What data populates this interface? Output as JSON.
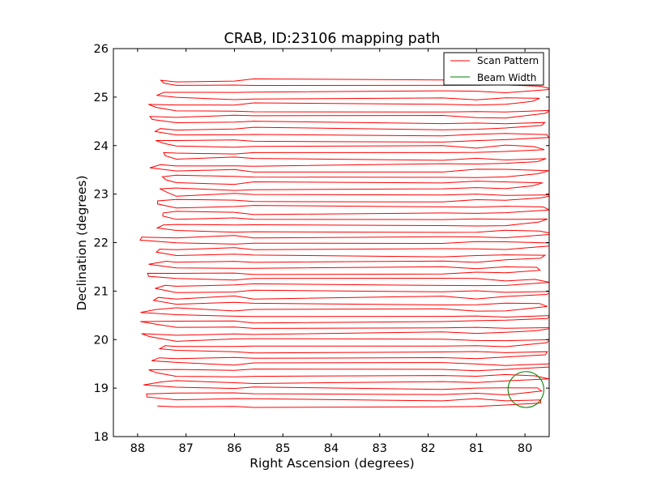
{
  "chart_data": {
    "type": "line",
    "title": "CRAB, ID:23106 mapping path",
    "xlabel": "Right Ascension (degrees)",
    "ylabel": "Declination (degrees)",
    "xlim": [
      88.5,
      79.5
    ],
    "ylim": [
      18,
      26
    ],
    "x_reversed": true,
    "xticks": [
      88,
      87,
      86,
      85,
      84,
      83,
      82,
      81,
      80
    ],
    "yticks": [
      18,
      19,
      20,
      21,
      22,
      23,
      24,
      25,
      26
    ],
    "grid": false,
    "legend": {
      "placement": "top-right",
      "entries": [
        "Scan Pattern",
        "Beam Width"
      ]
    },
    "series": [
      {
        "name": "Scan Pattern",
        "kind": "line",
        "color": "#ff0000",
        "scan": {
          "dec_start": 18.63,
          "dec_end": 25.4,
          "row_step": 0.1244,
          "ra_east_typical": 87.3,
          "ra_west_typical": 79.9
        }
      },
      {
        "name": "Beam Width",
        "kind": "circle",
        "color": "#008000",
        "center": {
          "ra": 79.98,
          "dec": 18.97
        },
        "radius_deg": 0.37
      }
    ]
  }
}
